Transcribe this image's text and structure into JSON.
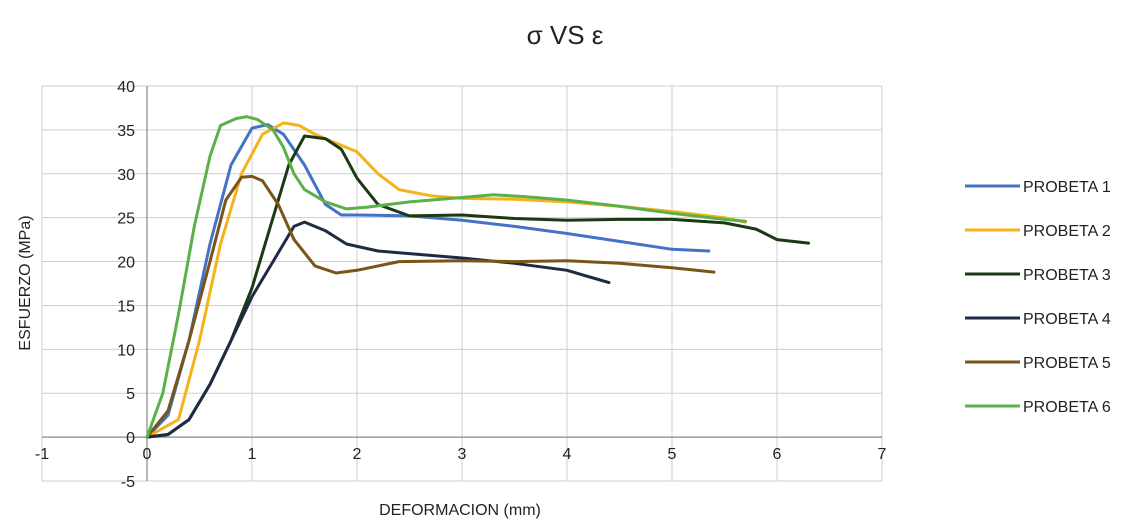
{
  "chart_data": {
    "type": "line",
    "title": "σ   VS   ε",
    "xlabel": "DEFORMACION (mm)",
    "ylabel": "ESFUERZO (MPa)",
    "xlim": [
      -1,
      7
    ],
    "ylim": [
      -5,
      40
    ],
    "xticks": [
      "-1",
      "0",
      "1",
      "2",
      "3",
      "4",
      "5",
      "6",
      "7"
    ],
    "yticks": [
      "-5",
      "0",
      "5",
      "10",
      "15",
      "20",
      "25",
      "30",
      "35",
      "40"
    ],
    "grid": true,
    "legend_position": "right",
    "series": [
      {
        "name": "PROBETA 1",
        "color": "#4472C4",
        "points": [
          [
            0,
            0
          ],
          [
            0.2,
            2.5
          ],
          [
            0.4,
            11
          ],
          [
            0.6,
            22
          ],
          [
            0.8,
            31
          ],
          [
            1.0,
            35.2
          ],
          [
            1.15,
            35.6
          ],
          [
            1.3,
            34.5
          ],
          [
            1.5,
            31
          ],
          [
            1.7,
            26.5
          ],
          [
            1.85,
            25.3
          ],
          [
            2.0,
            25.3
          ],
          [
            2.5,
            25.2
          ],
          [
            3.0,
            24.7
          ],
          [
            3.5,
            24
          ],
          [
            4.0,
            23.2
          ],
          [
            4.5,
            22.3
          ],
          [
            5.0,
            21.4
          ],
          [
            5.35,
            21.2
          ]
        ]
      },
      {
        "name": "PROBETA 2",
        "color": "#F5B31B",
        "points": [
          [
            0,
            0
          ],
          [
            0.3,
            2
          ],
          [
            0.5,
            11
          ],
          [
            0.7,
            22
          ],
          [
            0.9,
            30
          ],
          [
            1.1,
            34.5
          ],
          [
            1.3,
            35.8
          ],
          [
            1.45,
            35.5
          ],
          [
            1.6,
            34.5
          ],
          [
            1.8,
            33.5
          ],
          [
            2.0,
            32.5
          ],
          [
            2.2,
            30
          ],
          [
            2.4,
            28.2
          ],
          [
            2.7,
            27.5
          ],
          [
            3.0,
            27.2
          ],
          [
            3.5,
            27.1
          ],
          [
            4.0,
            26.8
          ],
          [
            4.5,
            26.3
          ],
          [
            5.0,
            25.7
          ],
          [
            5.5,
            25
          ],
          [
            5.7,
            24.5
          ]
        ]
      },
      {
        "name": "PROBETA 3",
        "color": "#1B3A14",
        "points": [
          [
            0,
            0
          ],
          [
            0.2,
            0.3
          ],
          [
            0.4,
            2
          ],
          [
            0.6,
            6
          ],
          [
            0.8,
            11
          ],
          [
            1.0,
            17
          ],
          [
            1.2,
            25
          ],
          [
            1.35,
            31
          ],
          [
            1.5,
            34.3
          ],
          [
            1.7,
            34
          ],
          [
            1.85,
            32.8
          ],
          [
            2.0,
            29.5
          ],
          [
            2.2,
            26.5
          ],
          [
            2.5,
            25.2
          ],
          [
            3.0,
            25.3
          ],
          [
            3.5,
            24.9
          ],
          [
            4.0,
            24.7
          ],
          [
            4.5,
            24.8
          ],
          [
            5.0,
            24.8
          ],
          [
            5.5,
            24.4
          ],
          [
            5.8,
            23.7
          ],
          [
            6.0,
            22.5
          ],
          [
            6.3,
            22.1
          ]
        ]
      },
      {
        "name": "PROBETA 4",
        "color": "#1F2A44",
        "points": [
          [
            0,
            0
          ],
          [
            0.2,
            0.3
          ],
          [
            0.4,
            2
          ],
          [
            0.6,
            6
          ],
          [
            0.8,
            11
          ],
          [
            1.0,
            16
          ],
          [
            1.2,
            20
          ],
          [
            1.4,
            24
          ],
          [
            1.5,
            24.5
          ],
          [
            1.7,
            23.5
          ],
          [
            1.9,
            22
          ],
          [
            2.2,
            21.2
          ],
          [
            2.6,
            20.8
          ],
          [
            3.0,
            20.4
          ],
          [
            3.5,
            19.8
          ],
          [
            4.0,
            19
          ],
          [
            4.2,
            18.3
          ],
          [
            4.4,
            17.6
          ]
        ]
      },
      {
        "name": "PROBETA 5",
        "color": "#7A5518",
        "points": [
          [
            0,
            0
          ],
          [
            0.2,
            3
          ],
          [
            0.4,
            11
          ],
          [
            0.6,
            20
          ],
          [
            0.75,
            27
          ],
          [
            0.9,
            29.6
          ],
          [
            1.0,
            29.7
          ],
          [
            1.1,
            29.2
          ],
          [
            1.25,
            26.5
          ],
          [
            1.4,
            22.5
          ],
          [
            1.6,
            19.5
          ],
          [
            1.8,
            18.7
          ],
          [
            2.0,
            19
          ],
          [
            2.4,
            20
          ],
          [
            3.0,
            20.1
          ],
          [
            3.5,
            20
          ],
          [
            4.0,
            20.1
          ],
          [
            4.5,
            19.8
          ],
          [
            5.0,
            19.3
          ],
          [
            5.4,
            18.8
          ]
        ]
      },
      {
        "name": "PROBETA 6",
        "color": "#5BB048",
        "points": [
          [
            0,
            0
          ],
          [
            0.15,
            5
          ],
          [
            0.3,
            14
          ],
          [
            0.45,
            24
          ],
          [
            0.6,
            32
          ],
          [
            0.7,
            35.5
          ],
          [
            0.85,
            36.3
          ],
          [
            0.95,
            36.5
          ],
          [
            1.05,
            36.2
          ],
          [
            1.2,
            35
          ],
          [
            1.3,
            33
          ],
          [
            1.4,
            30
          ],
          [
            1.5,
            28.2
          ],
          [
            1.7,
            26.8
          ],
          [
            1.9,
            26
          ],
          [
            2.1,
            26.2
          ],
          [
            2.5,
            26.8
          ],
          [
            3.0,
            27.3
          ],
          [
            3.3,
            27.6
          ],
          [
            3.6,
            27.4
          ],
          [
            4.0,
            27
          ],
          [
            4.5,
            26.3
          ],
          [
            5.0,
            25.5
          ],
          [
            5.5,
            24.8
          ],
          [
            5.7,
            24.6
          ]
        ]
      }
    ]
  }
}
